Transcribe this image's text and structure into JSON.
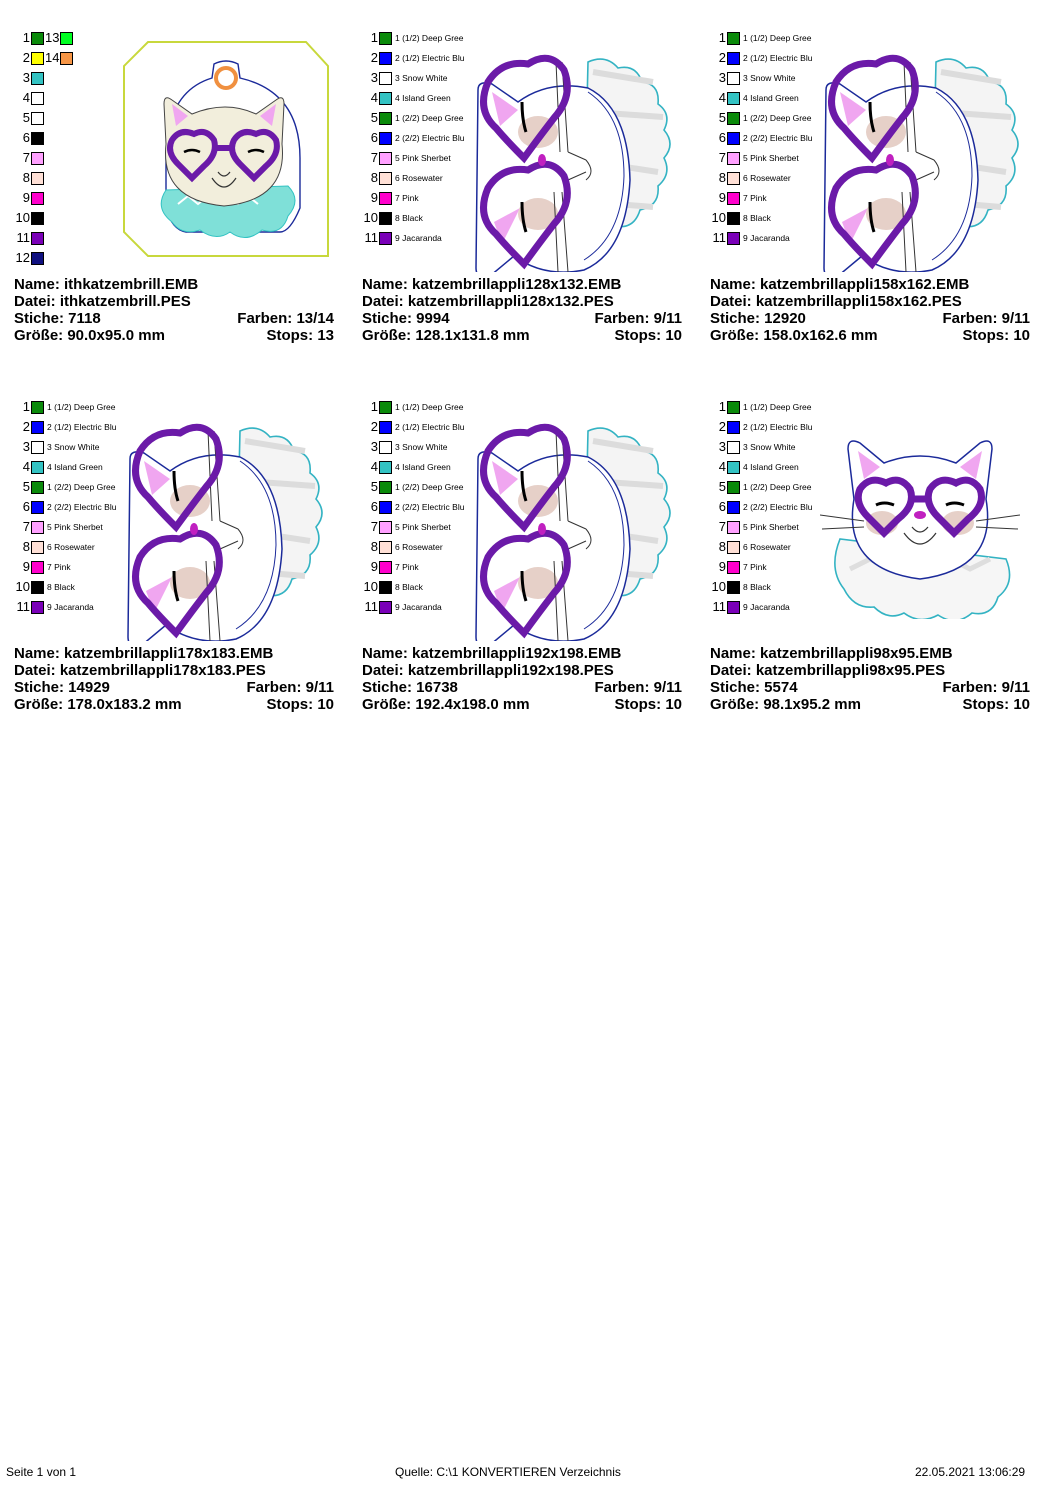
{
  "designs": [
    {
      "kind": "ith",
      "palette_rows": [
        {
          "n": "1",
          "color": "#0a8a0a",
          "n2": "13",
          "color2": "#00ff22"
        },
        {
          "n": "2",
          "color": "#ffff00",
          "n2": "14",
          "color2": "#f79646"
        },
        {
          "n": "3",
          "color": "#33c3c3"
        },
        {
          "n": "4",
          "color": "#ffffff"
        },
        {
          "n": "5",
          "color": "#ffffff"
        },
        {
          "n": "6",
          "color": "#000000"
        },
        {
          "n": "7",
          "color": "#ffa0ff"
        },
        {
          "n": "8",
          "color": "#ffe0d6"
        },
        {
          "n": "9",
          "color": "#ff00cc"
        },
        {
          "n": "10",
          "color": "#000000"
        },
        {
          "n": "11",
          "color": "#7a00b8"
        },
        {
          "n": "12",
          "color": "#101080"
        }
      ],
      "name": "Name: ithkatzembrill.EMB",
      "datei": "Datei: ithkatzembrill.PES",
      "stiche": "Stiche: 7118",
      "farben": "Farben: 13/14",
      "groesse": "Größe: 90.0x95.0 mm",
      "stops": "Stops: 13"
    },
    {
      "kind": "side",
      "palette_rows": [
        {
          "n": "1",
          "color": "#0a8a0a",
          "label": "1 (1/2) Deep Gree"
        },
        {
          "n": "2",
          "color": "#0000ff",
          "label": "2 (1/2) Electric Blu"
        },
        {
          "n": "3",
          "color": "#ffffff",
          "label": "3 Snow White"
        },
        {
          "n": "4",
          "color": "#33c3c3",
          "label": "4 Island Green"
        },
        {
          "n": "5",
          "color": "#0a8a0a",
          "label": "1 (2/2) Deep Gree"
        },
        {
          "n": "6",
          "color": "#0000ff",
          "label": "2 (2/2) Electric Blu"
        },
        {
          "n": "7",
          "color": "#ffa0ff",
          "label": "5 Pink Sherbet"
        },
        {
          "n": "8",
          "color": "#ffe0d6",
          "label": "6 Rosewater"
        },
        {
          "n": "9",
          "color": "#ff00cc",
          "label": "7 Pink"
        },
        {
          "n": "10",
          "color": "#000000",
          "label": "8 Black"
        },
        {
          "n": "11",
          "color": "#7a00b8",
          "label": "9 Jacaranda"
        }
      ],
      "name": "Name: katzembrillappli128x132.EMB",
      "datei": "Datei: katzembrillappli128x132.PES",
      "stiche": "Stiche: 9994",
      "farben": "Farben: 9/11",
      "groesse": "Größe: 128.1x131.8 mm",
      "stops": "Stops: 10"
    },
    {
      "kind": "side",
      "palette_rows": [
        {
          "n": "1",
          "color": "#0a8a0a",
          "label": "1 (1/2) Deep Gree"
        },
        {
          "n": "2",
          "color": "#0000ff",
          "label": "2 (1/2) Electric Blu"
        },
        {
          "n": "3",
          "color": "#ffffff",
          "label": "3 Snow White"
        },
        {
          "n": "4",
          "color": "#33c3c3",
          "label": "4 Island Green"
        },
        {
          "n": "5",
          "color": "#0a8a0a",
          "label": "1 (2/2) Deep Gree"
        },
        {
          "n": "6",
          "color": "#0000ff",
          "label": "2 (2/2) Electric Blu"
        },
        {
          "n": "7",
          "color": "#ffa0ff",
          "label": "5 Pink Sherbet"
        },
        {
          "n": "8",
          "color": "#ffe0d6",
          "label": "6 Rosewater"
        },
        {
          "n": "9",
          "color": "#ff00cc",
          "label": "7 Pink"
        },
        {
          "n": "10",
          "color": "#000000",
          "label": "8 Black"
        },
        {
          "n": "11",
          "color": "#7a00b8",
          "label": "9 Jacaranda"
        }
      ],
      "name": "Name: katzembrillappli158x162.EMB",
      "datei": "Datei: katzembrillappli158x162.PES",
      "stiche": "Stiche: 12920",
      "farben": "Farben: 9/11",
      "groesse": "Größe: 158.0x162.6 mm",
      "stops": "Stops: 10"
    },
    {
      "kind": "side",
      "palette_rows": [
        {
          "n": "1",
          "color": "#0a8a0a",
          "label": "1 (1/2) Deep Gree"
        },
        {
          "n": "2",
          "color": "#0000ff",
          "label": "2 (1/2) Electric Blu"
        },
        {
          "n": "3",
          "color": "#ffffff",
          "label": "3 Snow White"
        },
        {
          "n": "4",
          "color": "#33c3c3",
          "label": "4 Island Green"
        },
        {
          "n": "5",
          "color": "#0a8a0a",
          "label": "1 (2/2) Deep Gree"
        },
        {
          "n": "6",
          "color": "#0000ff",
          "label": "2 (2/2) Electric Blu"
        },
        {
          "n": "7",
          "color": "#ffa0ff",
          "label": "5 Pink Sherbet"
        },
        {
          "n": "8",
          "color": "#ffe0d6",
          "label": "6 Rosewater"
        },
        {
          "n": "9",
          "color": "#ff00cc",
          "label": "7 Pink"
        },
        {
          "n": "10",
          "color": "#000000",
          "label": "8 Black"
        },
        {
          "n": "11",
          "color": "#7a00b8",
          "label": "9 Jacaranda"
        }
      ],
      "name": "Name: katzembrillappli178x183.EMB",
      "datei": "Datei: katzembrillappli178x183.PES",
      "stiche": "Stiche: 14929",
      "farben": "Farben: 9/11",
      "groesse": "Größe: 178.0x183.2 mm",
      "stops": "Stops: 10"
    },
    {
      "kind": "side",
      "palette_rows": [
        {
          "n": "1",
          "color": "#0a8a0a",
          "label": "1 (1/2) Deep Gree"
        },
        {
          "n": "2",
          "color": "#0000ff",
          "label": "2 (1/2) Electric Blu"
        },
        {
          "n": "3",
          "color": "#ffffff",
          "label": "3 Snow White"
        },
        {
          "n": "4",
          "color": "#33c3c3",
          "label": "4 Island Green"
        },
        {
          "n": "5",
          "color": "#0a8a0a",
          "label": "1 (2/2) Deep Gree"
        },
        {
          "n": "6",
          "color": "#0000ff",
          "label": "2 (2/2) Electric Blu"
        },
        {
          "n": "7",
          "color": "#ffa0ff",
          "label": "5 Pink Sherbet"
        },
        {
          "n": "8",
          "color": "#ffe0d6",
          "label": "6 Rosewater"
        },
        {
          "n": "9",
          "color": "#ff00cc",
          "label": "7 Pink"
        },
        {
          "n": "10",
          "color": "#000000",
          "label": "8 Black"
        },
        {
          "n": "11",
          "color": "#7a00b8",
          "label": "9 Jacaranda"
        }
      ],
      "name": "Name: katzembrillappli192x198.EMB",
      "datei": "Datei: katzembrillappli192x198.PES",
      "stiche": "Stiche: 16738",
      "farben": "Farben: 9/11",
      "groesse": "Größe: 192.4x198.0 mm",
      "stops": "Stops: 10"
    },
    {
      "kind": "front",
      "palette_rows": [
        {
          "n": "1",
          "color": "#0a8a0a",
          "label": "1 (1/2) Deep Gree"
        },
        {
          "n": "2",
          "color": "#0000ff",
          "label": "2 (1/2) Electric Blu"
        },
        {
          "n": "3",
          "color": "#ffffff",
          "label": "3 Snow White"
        },
        {
          "n": "4",
          "color": "#33c3c3",
          "label": "4 Island Green"
        },
        {
          "n": "5",
          "color": "#0a8a0a",
          "label": "1 (2/2) Deep Gree"
        },
        {
          "n": "6",
          "color": "#0000ff",
          "label": "2 (2/2) Electric Blu"
        },
        {
          "n": "7",
          "color": "#ffa0ff",
          "label": "5 Pink Sherbet"
        },
        {
          "n": "8",
          "color": "#ffe0d6",
          "label": "6 Rosewater"
        },
        {
          "n": "9",
          "color": "#ff00cc",
          "label": "7 Pink"
        },
        {
          "n": "10",
          "color": "#000000",
          "label": "8 Black"
        },
        {
          "n": "11",
          "color": "#7a00b8",
          "label": "9 Jacaranda"
        }
      ],
      "name": "Name: katzembrillappli98x95.EMB",
      "datei": "Datei: katzembrillappli98x95.PES",
      "stiche": "Stiche: 5574",
      "farben": "Farben: 9/11",
      "groesse": "Größe: 98.1x95.2 mm",
      "stops": "Stops: 10"
    }
  ],
  "footer": {
    "page": "Seite 1 von 1",
    "source": "Quelle: C:\\1 KONVERTIEREN Verzeichnis",
    "datetime": "22.05.2021 13:06:29"
  }
}
